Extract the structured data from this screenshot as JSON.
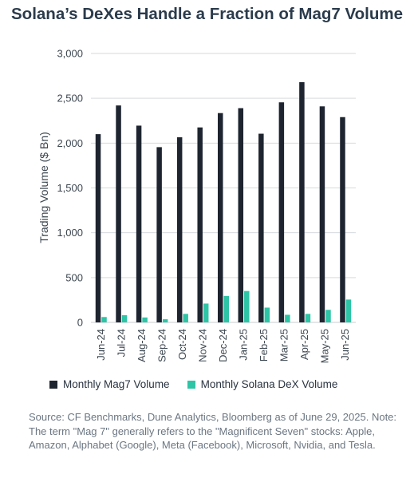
{
  "title": "Solana’s DeXes Handle a Fraction of Mag7 Volume",
  "source_note": "Source: CF Benchmarks, Dune Analytics, Bloomberg as of June 29, 2025. Note: The term \"Mag 7\" generally refers to the \"Magnificent Seven\" stocks: Apple, Amazon, Alphabet (Google), Meta (Facebook), Microsoft, Nvidia, and Tesla.",
  "chart_data": {
    "type": "bar",
    "title": "Solana’s DeXes Handle a Fraction of Mag7 Volume",
    "xlabel": "",
    "ylabel": "Trading Volume ($ Bn)",
    "ylim": [
      0,
      3000
    ],
    "yticks": [
      "0",
      "500",
      "1,000",
      "1,500",
      "2,000",
      "2,500",
      "3,000"
    ],
    "ytick_values": [
      0,
      500,
      1000,
      1500,
      2000,
      2500,
      3000
    ],
    "grid": true,
    "legend_position": "bottom",
    "categories": [
      "Jun-24",
      "Jul-24",
      "Aug-24",
      "Sep-24",
      "Oct-24",
      "Nov-24",
      "Dec-24",
      "Jan-25",
      "Feb-25",
      "Mar-25",
      "Apr-25",
      "May-25",
      "Jun-25"
    ],
    "series": [
      {
        "name": "Monthly Mag7 Volume",
        "color": "#1e2530",
        "values": [
          2100,
          2420,
          2195,
          1955,
          2065,
          2175,
          2335,
          2390,
          2105,
          2455,
          2680,
          2410,
          2290
        ]
      },
      {
        "name": "Monthly Solana DeX Volume",
        "color": "#2ec4a6",
        "values": [
          60,
          80,
          55,
          35,
          95,
          210,
          295,
          350,
          165,
          85,
          95,
          140,
          255
        ]
      }
    ]
  }
}
